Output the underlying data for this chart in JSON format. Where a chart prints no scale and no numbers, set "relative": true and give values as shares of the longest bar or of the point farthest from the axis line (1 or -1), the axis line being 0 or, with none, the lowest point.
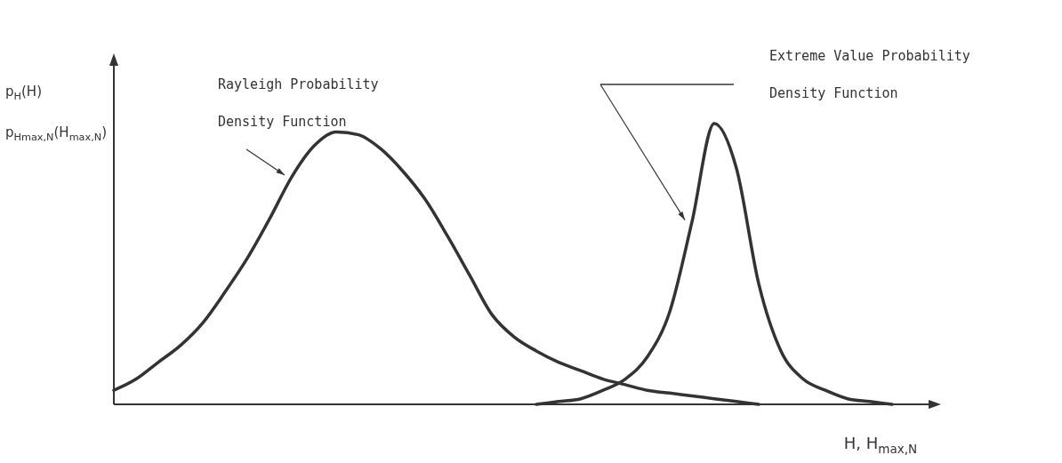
{
  "chart_data": {
    "type": "line",
    "relative": true,
    "marker": "none",
    "line_style": "solid",
    "xlabel": "H, H$_{max,N}$",
    "ylabel": "p$_{H}$(H)\np$_{Hmax,N}$(H$_{max,N}$)",
    "annotations": [
      "Rayleigh Probability Density Function",
      "Extreme Value Probability Density Function"
    ],
    "categories": [
      null,
      null,
      null,
      null,
      null,
      null,
      null,
      null,
      null,
      null,
      null,
      null,
      null,
      null,
      null,
      null,
      null,
      null,
      null,
      null,
      null,
      null,
      null,
      null,
      null,
      null,
      null,
      null,
      null,
      null,
      null,
      null,
      null,
      null,
      null,
      null,
      null
    ],
    "series": [
      {
        "color": "#333333",
        "values": [
          0.05,
          0.09,
          0.15,
          0.21,
          0.29,
          0.4,
          0.52,
          0.66,
          0.81,
          0.92,
          0.97,
          0.96,
          0.91,
          0.83,
          0.73,
          0.6,
          0.46,
          0.32,
          0.24,
          0.19,
          0.15,
          0.12,
          0.09,
          0.07,
          0.05,
          0.04,
          0.03,
          0.02,
          0.01,
          0.0,
          null,
          null,
          null,
          null,
          null,
          null,
          null
        ]
      },
      {
        "color": "#333333",
        "values": [
          null,
          null,
          null,
          null,
          null,
          null,
          null,
          null,
          null,
          null,
          null,
          null,
          null,
          null,
          null,
          null,
          null,
          null,
          null,
          0.0,
          0.01,
          0.02,
          0.05,
          0.09,
          0.17,
          0.33,
          0.65,
          1.0,
          0.84,
          0.43,
          0.19,
          0.09,
          0.05,
          0.02,
          0.01,
          0.0,
          null
        ]
      }
    ]
  }
}
